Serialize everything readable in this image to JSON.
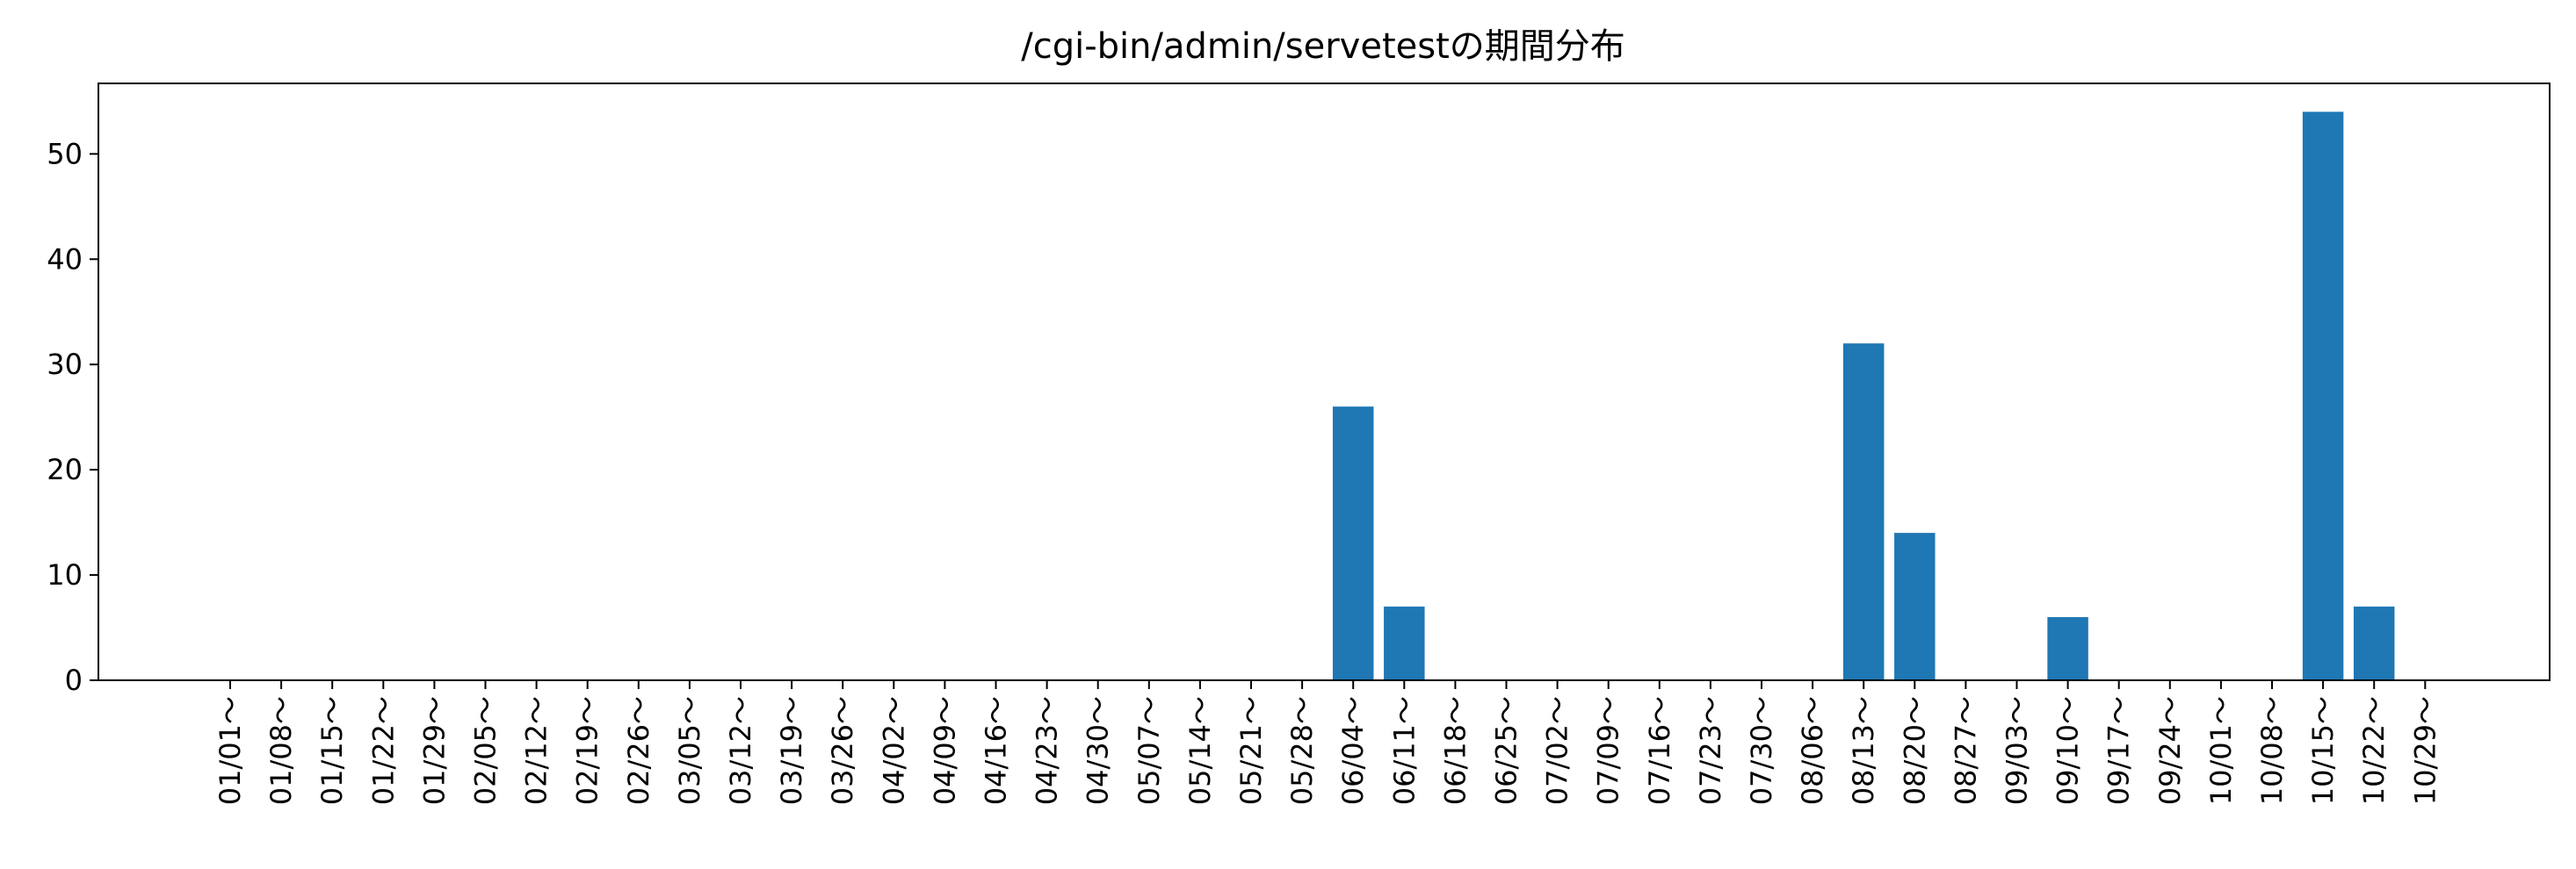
{
  "chart_data": {
    "type": "bar",
    "title": "/cgi-bin/admin/servetestの期間分布",
    "xlabel": "",
    "ylabel": "",
    "categories": [
      "01/01～",
      "01/08～",
      "01/15～",
      "01/22～",
      "01/29～",
      "02/05～",
      "02/12～",
      "02/19～",
      "02/26～",
      "03/05～",
      "03/12～",
      "03/19～",
      "03/26～",
      "04/02～",
      "04/09～",
      "04/16～",
      "04/23～",
      "04/30～",
      "05/07～",
      "05/14～",
      "05/21～",
      "05/28～",
      "06/04～",
      "06/11～",
      "06/18～",
      "06/25～",
      "07/02～",
      "07/09～",
      "07/16～",
      "07/23～",
      "07/30～",
      "08/06～",
      "08/13～",
      "08/20～",
      "08/27～",
      "09/03～",
      "09/10～",
      "09/17～",
      "09/24～",
      "10/01～",
      "10/08～",
      "10/15～",
      "10/22～",
      "10/29～"
    ],
    "values": [
      0,
      0,
      0,
      0,
      0,
      0,
      0,
      0,
      0,
      0,
      0,
      0,
      0,
      0,
      0,
      0,
      0,
      0,
      0,
      0,
      0,
      0,
      26,
      7,
      0,
      0,
      0,
      0,
      0,
      0,
      0,
      0,
      32,
      14,
      0,
      0,
      6,
      0,
      0,
      0,
      0,
      54,
      7,
      0
    ],
    "ylim": [
      0,
      56.7
    ],
    "yticks": [
      0,
      10,
      20,
      30,
      40,
      50
    ],
    "grid": false,
    "bar_color": "#1f77b4"
  }
}
